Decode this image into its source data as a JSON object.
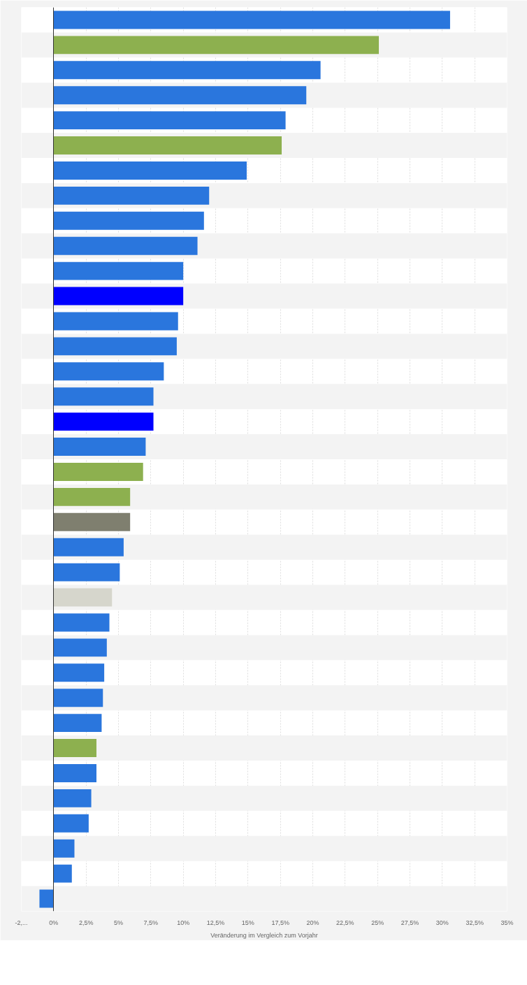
{
  "chart_data": {
    "type": "bar",
    "orientation": "horizontal",
    "xlabel": "Veränderung im Vergleich zum Vorjahr",
    "categories": [
      null,
      null,
      null,
      null,
      null,
      null,
      null,
      null,
      null,
      null,
      null,
      null,
      null,
      null,
      null,
      null,
      null,
      null,
      null,
      null,
      null,
      null,
      null,
      null,
      null,
      null,
      null,
      null,
      null,
      null,
      null,
      null,
      null,
      null,
      null,
      null
    ],
    "values": [
      30.6,
      25.1,
      20.6,
      19.5,
      17.9,
      17.6,
      14.9,
      12.0,
      11.6,
      11.1,
      10.0,
      10.0,
      9.6,
      9.5,
      8.5,
      7.7,
      7.7,
      7.1,
      6.9,
      5.9,
      5.9,
      5.4,
      5.1,
      4.5,
      4.3,
      4.1,
      3.9,
      3.8,
      3.7,
      3.3,
      3.3,
      2.9,
      2.7,
      1.6,
      1.4,
      -1.1
    ],
    "colors": [
      "#2a76dd",
      "#8db04f",
      "#2a76dd",
      "#2a76dd",
      "#2a76dd",
      "#8db04f",
      "#2a76dd",
      "#2a76dd",
      "#2a76dd",
      "#2a76dd",
      "#2a76dd",
      "#0000ff",
      "#2a76dd",
      "#2a76dd",
      "#2a76dd",
      "#2a76dd",
      "#0000ff",
      "#2a76dd",
      "#8db04f",
      "#8db04f",
      "#7f7f6f",
      "#2a76dd",
      "#2a76dd",
      "#d6d6cc",
      "#2a76dd",
      "#2a76dd",
      "#2a76dd",
      "#2a76dd",
      "#2a76dd",
      "#8db04f",
      "#2a76dd",
      "#2a76dd",
      "#2a76dd",
      "#2a76dd",
      "#2a76dd",
      "#2a76dd"
    ],
    "xlim": [
      -2.5,
      35
    ],
    "xticks": [
      {
        "value": -2.5,
        "label": "-2,..."
      },
      {
        "value": 0,
        "label": "0%"
      },
      {
        "value": 2.5,
        "label": "2,5%"
      },
      {
        "value": 5,
        "label": "5%"
      },
      {
        "value": 7.5,
        "label": "7,5%"
      },
      {
        "value": 10,
        "label": "10%"
      },
      {
        "value": 12.5,
        "label": "12,5%"
      },
      {
        "value": 15,
        "label": "15%"
      },
      {
        "value": 17.5,
        "label": "17,5%"
      },
      {
        "value": 20,
        "label": "20%"
      },
      {
        "value": 22.5,
        "label": "22,5%"
      },
      {
        "value": 25,
        "label": "25%"
      },
      {
        "value": 27.5,
        "label": "27,5%"
      },
      {
        "value": 30,
        "label": "30%"
      },
      {
        "value": 32.5,
        "label": "32,5%"
      },
      {
        "value": 35,
        "label": "35%"
      }
    ],
    "grid": "x",
    "tick_labels": "x"
  }
}
